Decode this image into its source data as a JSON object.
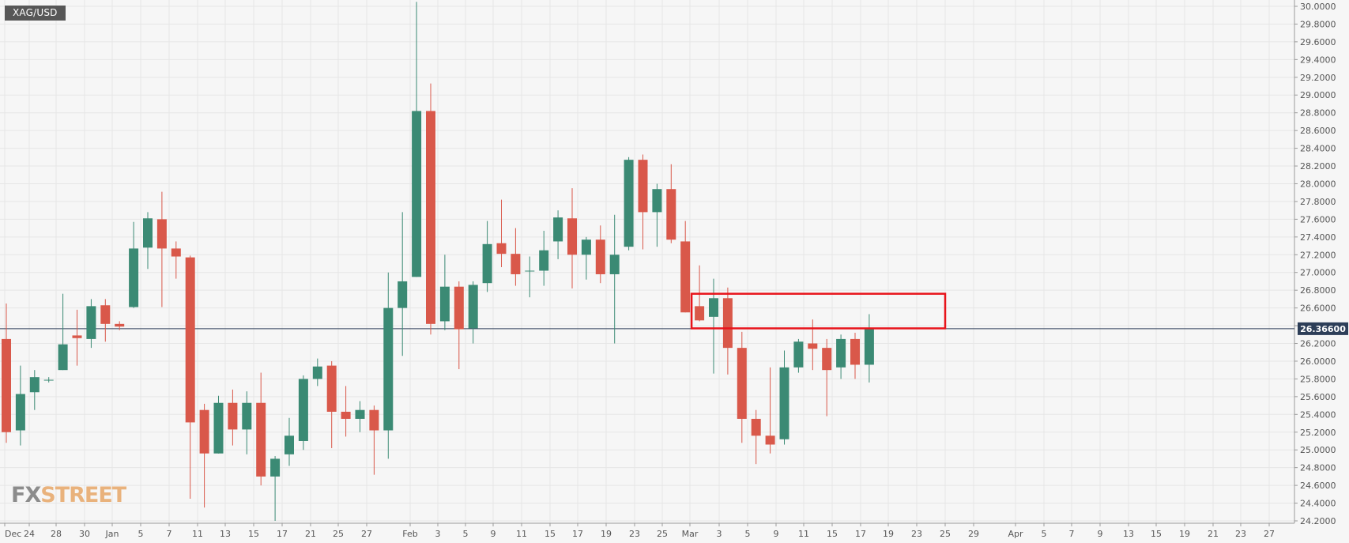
{
  "symbol": "XAG/USD",
  "watermark": {
    "part1": "FX",
    "part2": "STREET"
  },
  "colors": {
    "up": "#3b8a74",
    "down": "#d9584a",
    "price_line": "#2d3e58",
    "box": "#e8141b",
    "price_tag_bg": "#2d3e58"
  },
  "chart_data": {
    "type": "candlestick",
    "title": "",
    "ylim": [
      24.2,
      30.0
    ],
    "y_ticks": [
      "24.2000",
      "24.4000",
      "24.6000",
      "24.8000",
      "25.0000",
      "25.2000",
      "25.4000",
      "25.6000",
      "25.8000",
      "26.0000",
      "26.2000",
      "26.4000",
      "26.6000",
      "26.8000",
      "27.0000",
      "27.2000",
      "27.4000",
      "27.6000",
      "27.8000",
      "28.0000",
      "28.2000",
      "28.4000",
      "28.6000",
      "28.8000",
      "29.0000",
      "29.2000",
      "29.4000",
      "29.6000",
      "29.8000",
      "30.0000"
    ],
    "x_ticks": [
      "Dec",
      "24",
      "28",
      "30",
      "Jan",
      "5",
      "7",
      "11",
      "13",
      "15",
      "17",
      "21",
      "25",
      "27",
      "Feb",
      "3",
      "5",
      "9",
      "11",
      "15",
      "17",
      "19",
      "23",
      "25",
      "Mar",
      "3",
      "5",
      "9",
      "11",
      "15",
      "17",
      "19",
      "23",
      "25",
      "29",
      "Apr",
      "5",
      "7",
      "9",
      "13",
      "15",
      "19",
      "21",
      "23",
      "27"
    ],
    "current_price": 26.366,
    "current_price_label": "26.36600",
    "candles": [
      {
        "o": 26.25,
        "h": 26.65,
        "l": 25.08,
        "c": 25.2
      },
      {
        "o": 25.22,
        "h": 25.95,
        "l": 25.05,
        "c": 25.63
      },
      {
        "o": 25.65,
        "h": 25.9,
        "l": 25.45,
        "c": 25.82
      },
      {
        "o": 25.79,
        "h": 25.82,
        "l": 25.76,
        "c": 25.79
      },
      {
        "o": 25.9,
        "h": 26.76,
        "l": 25.9,
        "c": 26.19
      },
      {
        "o": 26.29,
        "h": 26.58,
        "l": 25.95,
        "c": 26.26
      },
      {
        "o": 26.25,
        "h": 26.7,
        "l": 26.15,
        "c": 26.62
      },
      {
        "o": 26.63,
        "h": 26.7,
        "l": 26.22,
        "c": 26.42
      },
      {
        "o": 26.42,
        "h": 26.45,
        "l": 26.35,
        "c": 26.39
      },
      {
        "o": 26.61,
        "h": 27.57,
        "l": 26.6,
        "c": 27.27
      },
      {
        "o": 27.28,
        "h": 27.68,
        "l": 27.04,
        "c": 27.61
      },
      {
        "o": 27.6,
        "h": 27.91,
        "l": 26.61,
        "c": 27.27
      },
      {
        "o": 27.27,
        "h": 27.35,
        "l": 26.93,
        "c": 27.18
      },
      {
        "o": 27.17,
        "h": 27.19,
        "l": 24.45,
        "c": 25.31
      },
      {
        "o": 25.45,
        "h": 25.52,
        "l": 24.35,
        "c": 24.96
      },
      {
        "o": 24.96,
        "h": 25.61,
        "l": 24.96,
        "c": 25.53
      },
      {
        "o": 25.53,
        "h": 25.68,
        "l": 25.05,
        "c": 25.23
      },
      {
        "o": 25.23,
        "h": 25.66,
        "l": 24.95,
        "c": 25.53
      },
      {
        "o": 25.53,
        "h": 25.87,
        "l": 24.6,
        "c": 24.7
      },
      {
        "o": 24.7,
        "h": 24.93,
        "l": 24.2,
        "c": 24.9
      },
      {
        "o": 24.95,
        "h": 25.36,
        "l": 24.82,
        "c": 25.16
      },
      {
        "o": 25.1,
        "h": 25.84,
        "l": 25.0,
        "c": 25.8
      },
      {
        "o": 25.8,
        "h": 26.03,
        "l": 25.72,
        "c": 25.94
      },
      {
        "o": 25.95,
        "h": 26.0,
        "l": 25.02,
        "c": 25.43
      },
      {
        "o": 25.43,
        "h": 25.72,
        "l": 25.15,
        "c": 25.35
      },
      {
        "o": 25.35,
        "h": 25.55,
        "l": 25.2,
        "c": 25.45
      },
      {
        "o": 25.45,
        "h": 25.5,
        "l": 24.72,
        "c": 25.22
      },
      {
        "o": 25.22,
        "h": 27.0,
        "l": 24.9,
        "c": 26.6
      },
      {
        "o": 26.6,
        "h": 27.68,
        "l": 26.06,
        "c": 26.9
      },
      {
        "o": 26.95,
        "h": 30.05,
        "l": 26.95,
        "c": 28.82
      },
      {
        "o": 28.82,
        "h": 29.13,
        "l": 26.3,
        "c": 26.42
      },
      {
        "o": 26.45,
        "h": 27.2,
        "l": 26.35,
        "c": 26.84
      },
      {
        "o": 26.84,
        "h": 26.9,
        "l": 25.91,
        "c": 26.36
      },
      {
        "o": 26.37,
        "h": 26.9,
        "l": 26.2,
        "c": 26.86
      },
      {
        "o": 26.88,
        "h": 27.58,
        "l": 26.78,
        "c": 27.32
      },
      {
        "o": 27.33,
        "h": 27.82,
        "l": 27.06,
        "c": 27.21
      },
      {
        "o": 27.21,
        "h": 27.5,
        "l": 26.85,
        "c": 26.98
      },
      {
        "o": 27.02,
        "h": 27.18,
        "l": 26.72,
        "c": 27.02
      },
      {
        "o": 27.02,
        "h": 27.47,
        "l": 26.85,
        "c": 27.25
      },
      {
        "o": 27.35,
        "h": 27.7,
        "l": 27.15,
        "c": 27.62
      },
      {
        "o": 27.61,
        "h": 27.95,
        "l": 26.82,
        "c": 27.2
      },
      {
        "o": 27.2,
        "h": 27.4,
        "l": 26.92,
        "c": 27.37
      },
      {
        "o": 27.37,
        "h": 27.53,
        "l": 26.88,
        "c": 26.98
      },
      {
        "o": 26.98,
        "h": 27.65,
        "l": 26.2,
        "c": 27.2
      },
      {
        "o": 27.29,
        "h": 28.3,
        "l": 27.25,
        "c": 28.27
      },
      {
        "o": 28.27,
        "h": 28.33,
        "l": 27.26,
        "c": 27.68
      },
      {
        "o": 27.68,
        "h": 28.0,
        "l": 27.29,
        "c": 27.94
      },
      {
        "o": 27.94,
        "h": 28.22,
        "l": 27.33,
        "c": 27.37
      },
      {
        "o": 27.35,
        "h": 27.58,
        "l": 26.55,
        "c": 26.55
      },
      {
        "o": 26.62,
        "h": 27.08,
        "l": 26.45,
        "c": 26.46
      },
      {
        "o": 26.5,
        "h": 26.93,
        "l": 25.86,
        "c": 26.71
      },
      {
        "o": 26.71,
        "h": 26.83,
        "l": 25.85,
        "c": 26.15
      },
      {
        "o": 26.15,
        "h": 26.33,
        "l": 25.08,
        "c": 25.35
      },
      {
        "o": 25.35,
        "h": 25.45,
        "l": 24.84,
        "c": 25.16
      },
      {
        "o": 25.16,
        "h": 25.93,
        "l": 24.96,
        "c": 25.06
      },
      {
        "o": 25.12,
        "h": 26.12,
        "l": 25.06,
        "c": 25.93
      },
      {
        "o": 25.93,
        "h": 26.25,
        "l": 25.87,
        "c": 26.22
      },
      {
        "o": 26.2,
        "h": 26.47,
        "l": 25.9,
        "c": 26.14
      },
      {
        "o": 26.15,
        "h": 26.25,
        "l": 25.38,
        "c": 25.9
      },
      {
        "o": 25.93,
        "h": 26.3,
        "l": 25.8,
        "c": 26.25
      },
      {
        "o": 26.25,
        "h": 26.32,
        "l": 25.8,
        "c": 25.96
      },
      {
        "o": 25.96,
        "h": 26.53,
        "l": 25.76,
        "c": 26.366
      }
    ],
    "annotation": {
      "type": "rectangle",
      "from_candle": 49,
      "to_date_tick": "25",
      "y_top": 26.76,
      "y_bottom": 26.37
    }
  }
}
